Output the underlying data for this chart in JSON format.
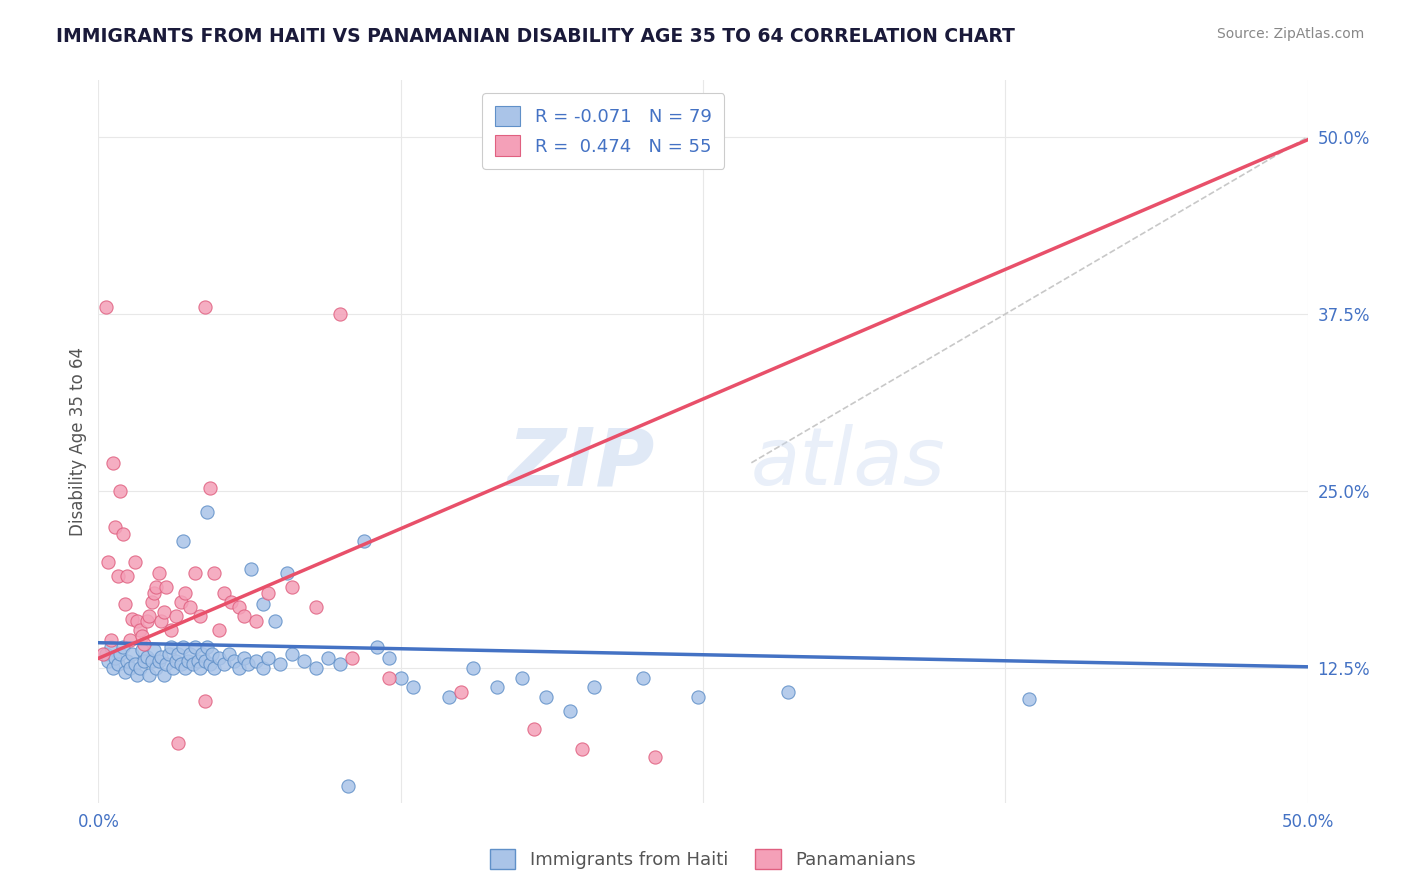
{
  "title": "IMMIGRANTS FROM HAITI VS PANAMANIAN DISABILITY AGE 35 TO 64 CORRELATION CHART",
  "source": "Source: ZipAtlas.com",
  "ylabel": "Disability Age 35 to 64",
  "xlim": [
    0.0,
    0.5
  ],
  "ylim": [
    0.03,
    0.54
  ],
  "yticks": [
    0.125,
    0.25,
    0.375,
    0.5
  ],
  "ytick_labels": [
    "12.5%",
    "25.0%",
    "37.5%",
    "50.0%"
  ],
  "xticks": [
    0.0,
    0.5
  ],
  "xtick_labels": [
    "0.0%",
    "50.0%"
  ],
  "haiti_scatter": [
    [
      0.003,
      0.135
    ],
    [
      0.004,
      0.13
    ],
    [
      0.005,
      0.14
    ],
    [
      0.006,
      0.125
    ],
    [
      0.007,
      0.132
    ],
    [
      0.008,
      0.128
    ],
    [
      0.009,
      0.135
    ],
    [
      0.01,
      0.14
    ],
    [
      0.011,
      0.122
    ],
    [
      0.012,
      0.13
    ],
    [
      0.013,
      0.125
    ],
    [
      0.014,
      0.135
    ],
    [
      0.015,
      0.128
    ],
    [
      0.016,
      0.12
    ],
    [
      0.017,
      0.125
    ],
    [
      0.018,
      0.138
    ],
    [
      0.019,
      0.13
    ],
    [
      0.02,
      0.133
    ],
    [
      0.021,
      0.12
    ],
    [
      0.022,
      0.13
    ],
    [
      0.023,
      0.138
    ],
    [
      0.024,
      0.125
    ],
    [
      0.025,
      0.13
    ],
    [
      0.026,
      0.133
    ],
    [
      0.027,
      0.12
    ],
    [
      0.028,
      0.128
    ],
    [
      0.029,
      0.135
    ],
    [
      0.03,
      0.14
    ],
    [
      0.031,
      0.125
    ],
    [
      0.032,
      0.13
    ],
    [
      0.033,
      0.135
    ],
    [
      0.034,
      0.128
    ],
    [
      0.035,
      0.14
    ],
    [
      0.036,
      0.125
    ],
    [
      0.037,
      0.13
    ],
    [
      0.038,
      0.135
    ],
    [
      0.039,
      0.128
    ],
    [
      0.04,
      0.14
    ],
    [
      0.041,
      0.13
    ],
    [
      0.042,
      0.125
    ],
    [
      0.043,
      0.135
    ],
    [
      0.044,
      0.13
    ],
    [
      0.045,
      0.14
    ],
    [
      0.046,
      0.128
    ],
    [
      0.047,
      0.135
    ],
    [
      0.048,
      0.125
    ],
    [
      0.05,
      0.132
    ],
    [
      0.052,
      0.128
    ],
    [
      0.054,
      0.135
    ],
    [
      0.056,
      0.13
    ],
    [
      0.058,
      0.125
    ],
    [
      0.06,
      0.132
    ],
    [
      0.062,
      0.128
    ],
    [
      0.065,
      0.13
    ],
    [
      0.068,
      0.125
    ],
    [
      0.07,
      0.132
    ],
    [
      0.075,
      0.128
    ],
    [
      0.08,
      0.135
    ],
    [
      0.085,
      0.13
    ],
    [
      0.09,
      0.125
    ],
    [
      0.095,
      0.132
    ],
    [
      0.1,
      0.128
    ],
    [
      0.035,
      0.215
    ],
    [
      0.045,
      0.235
    ],
    [
      0.063,
      0.195
    ],
    [
      0.068,
      0.17
    ],
    [
      0.073,
      0.158
    ],
    [
      0.078,
      0.192
    ],
    [
      0.11,
      0.215
    ],
    [
      0.115,
      0.14
    ],
    [
      0.12,
      0.132
    ],
    [
      0.125,
      0.118
    ],
    [
      0.13,
      0.112
    ],
    [
      0.145,
      0.105
    ],
    [
      0.155,
      0.125
    ],
    [
      0.165,
      0.112
    ],
    [
      0.175,
      0.118
    ],
    [
      0.185,
      0.105
    ],
    [
      0.205,
      0.112
    ],
    [
      0.225,
      0.118
    ],
    [
      0.285,
      0.108
    ],
    [
      0.385,
      0.103
    ],
    [
      0.103,
      0.042
    ],
    [
      0.195,
      0.095
    ],
    [
      0.248,
      0.105
    ]
  ],
  "panama_scatter": [
    [
      0.002,
      0.135
    ],
    [
      0.003,
      0.38
    ],
    [
      0.004,
      0.2
    ],
    [
      0.005,
      0.145
    ],
    [
      0.006,
      0.27
    ],
    [
      0.007,
      0.225
    ],
    [
      0.008,
      0.19
    ],
    [
      0.009,
      0.25
    ],
    [
      0.01,
      0.22
    ],
    [
      0.011,
      0.17
    ],
    [
      0.012,
      0.19
    ],
    [
      0.013,
      0.145
    ],
    [
      0.014,
      0.16
    ],
    [
      0.015,
      0.2
    ],
    [
      0.016,
      0.158
    ],
    [
      0.017,
      0.152
    ],
    [
      0.018,
      0.148
    ],
    [
      0.019,
      0.142
    ],
    [
      0.02,
      0.158
    ],
    [
      0.021,
      0.162
    ],
    [
      0.022,
      0.172
    ],
    [
      0.023,
      0.178
    ],
    [
      0.024,
      0.182
    ],
    [
      0.025,
      0.192
    ],
    [
      0.026,
      0.158
    ],
    [
      0.027,
      0.165
    ],
    [
      0.028,
      0.182
    ],
    [
      0.03,
      0.152
    ],
    [
      0.032,
      0.162
    ],
    [
      0.033,
      0.072
    ],
    [
      0.034,
      0.172
    ],
    [
      0.036,
      0.178
    ],
    [
      0.038,
      0.168
    ],
    [
      0.04,
      0.192
    ],
    [
      0.042,
      0.162
    ],
    [
      0.044,
      0.102
    ],
    [
      0.046,
      0.252
    ],
    [
      0.048,
      0.192
    ],
    [
      0.05,
      0.152
    ],
    [
      0.052,
      0.178
    ],
    [
      0.055,
      0.172
    ],
    [
      0.058,
      0.168
    ],
    [
      0.06,
      0.162
    ],
    [
      0.065,
      0.158
    ],
    [
      0.07,
      0.178
    ],
    [
      0.08,
      0.182
    ],
    [
      0.09,
      0.168
    ],
    [
      0.1,
      0.375
    ],
    [
      0.105,
      0.132
    ],
    [
      0.12,
      0.118
    ],
    [
      0.15,
      0.108
    ],
    [
      0.18,
      0.082
    ],
    [
      0.2,
      0.068
    ],
    [
      0.23,
      0.062
    ],
    [
      0.044,
      0.38
    ]
  ],
  "haiti_line": {
    "x0": 0.0,
    "y0": 0.143,
    "x1": 0.5,
    "y1": 0.126
  },
  "panama_line": {
    "x0": 0.0,
    "y0": 0.132,
    "x1": 0.5,
    "y1": 0.498
  },
  "diagonal_line": {
    "x0": 0.27,
    "y0": 0.27,
    "x1": 0.5,
    "y1": 0.5
  },
  "haiti_color": "#aac4e8",
  "panama_color": "#f4a0b8",
  "haiti_edge_color": "#6090c8",
  "panama_edge_color": "#e06080",
  "haiti_line_color": "#4472c4",
  "panama_line_color": "#e8506a",
  "diagonal_color": "#c8c8c8",
  "background_color": "#ffffff",
  "grid_color": "#e8e8e8",
  "title_color": "#1a1a3a",
  "axis_label_color": "#4472c4",
  "ylabel_color": "#555555",
  "source_color": "#888888"
}
